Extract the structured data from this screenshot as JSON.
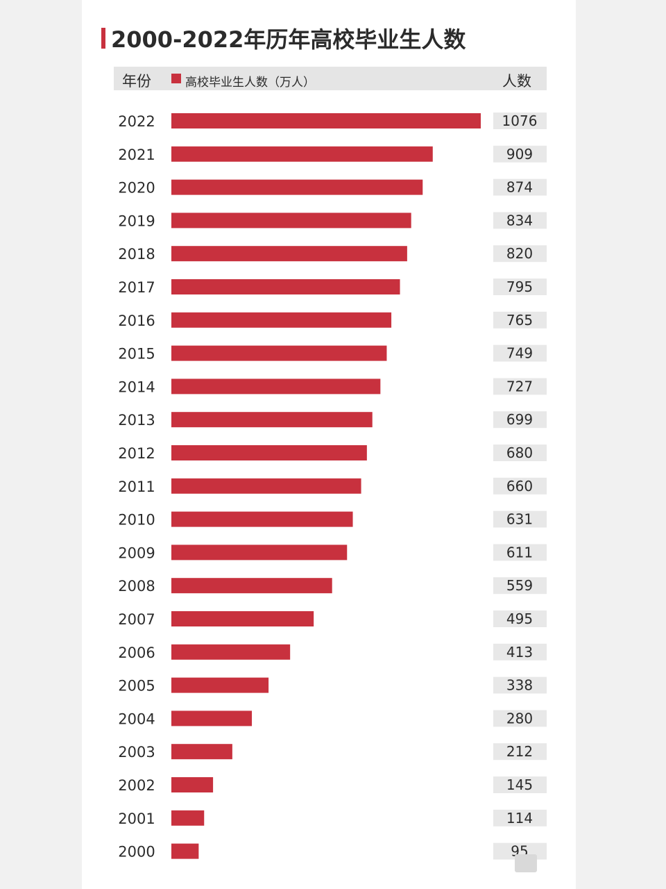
{
  "header": {
    "title": "2000-2022年历年高校毕业生人数",
    "year_col": "年份",
    "series_label": "高校毕业生人数（万人）",
    "count_col": "人数"
  },
  "colors": {
    "bar": "#c8313e",
    "value_bg": "#e8e8e8",
    "text": "#2b2b2b"
  },
  "chart_data": {
    "type": "bar",
    "orientation": "horizontal",
    "title": "2000-2022年历年高校毕业生人数",
    "categories": [
      "2022",
      "2021",
      "2020",
      "2019",
      "2018",
      "2017",
      "2016",
      "2015",
      "2014",
      "2013",
      "2012",
      "2011",
      "2010",
      "2009",
      "2008",
      "2007",
      "2006",
      "2005",
      "2004",
      "2003",
      "2002",
      "2001",
      "2000"
    ],
    "series": [
      {
        "name": "高校毕业生人数（万人）",
        "values": [
          1076,
          909,
          874,
          834,
          820,
          795,
          765,
          749,
          727,
          699,
          680,
          660,
          631,
          611,
          559,
          495,
          413,
          338,
          280,
          212,
          145,
          114,
          95
        ]
      }
    ],
    "xlim": [
      0,
      1076
    ],
    "grid": false,
    "legend": "top"
  }
}
